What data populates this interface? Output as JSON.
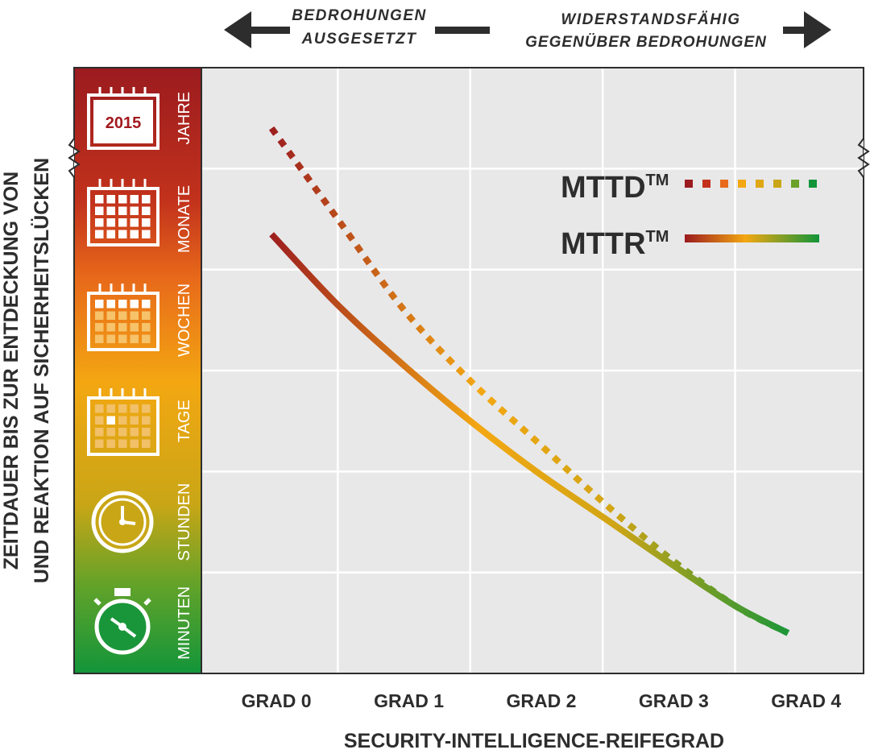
{
  "chart_data": {
    "type": "line",
    "title": "",
    "arrow_left_label": [
      "BEDROHUNGEN",
      "AUSGESETZT"
    ],
    "arrow_right_label": [
      "WIDERSTANDSFÄHIG",
      "GEGENÜBER BEDROHUNGEN"
    ],
    "xlabel": "SECURITY-INTELLIGENCE-REIFEGRAD",
    "ylabel": [
      "ZEITDAUER BIS ZUR ENTDECKUNG VON",
      "UND REAKTION AUF SICHERHEITSLÜCKEN"
    ],
    "categories": [
      "GRAD 0",
      "GRAD 1",
      "GRAD 2",
      "GRAD 3",
      "GRAD 4"
    ],
    "y_levels": [
      "MINUTEN",
      "STUNDEN",
      "TAGE",
      "WOCHEN",
      "MONATE",
      "JAHRE"
    ],
    "calendar_year": "2015",
    "ylim": [
      0,
      6
    ],
    "xlim": [
      -0.53,
      4.47
    ],
    "series": [
      {
        "name": "MTTD",
        "trademark": "TM",
        "style": "dotted",
        "x": [
          0,
          0.5,
          1,
          1.5,
          2,
          2.5,
          3,
          3.5,
          3.9
        ],
        "y": [
          5.4,
          4.5,
          3.6,
          2.9,
          2.3,
          1.7,
          1.15,
          0.67,
          0.4
        ]
      },
      {
        "name": "MTTR",
        "trademark": "TM",
        "style": "solid",
        "x": [
          0,
          0.5,
          1,
          1.5,
          2,
          2.5,
          3,
          3.5,
          3.9
        ],
        "y": [
          4.35,
          3.65,
          3.05,
          2.5,
          2.0,
          1.55,
          1.1,
          0.67,
          0.4
        ]
      }
    ],
    "gradient_colors": [
      "#9b1b1f",
      "#f3a712",
      "#12953a"
    ],
    "grid": true
  }
}
